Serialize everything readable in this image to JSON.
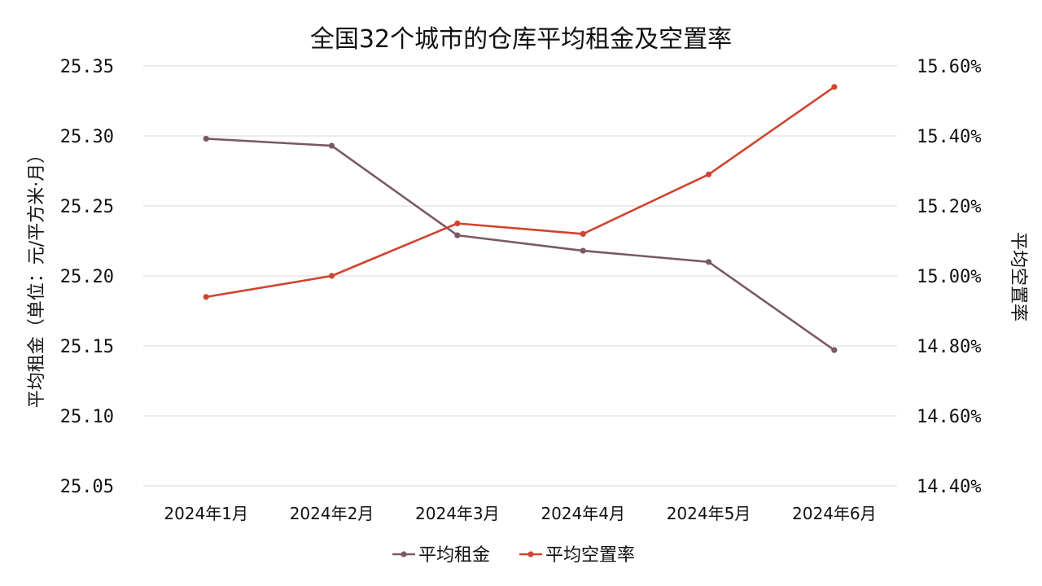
{
  "chart_data": {
    "type": "line",
    "title": "全国32个城市的仓库平均租金及空置率",
    "categories": [
      "2024年1月",
      "2024年2月",
      "2024年3月",
      "2024年4月",
      "2024年5月",
      "2024年6月"
    ],
    "y_left": {
      "label": "平均租金（单位：元/平方米·月）",
      "ticks": [
        "25.35",
        "25.30",
        "25.25",
        "25.20",
        "25.15",
        "25.10",
        "25.05"
      ],
      "ylim": [
        25.05,
        25.35
      ]
    },
    "y_right": {
      "label": "平均空置率",
      "ticks": [
        "15.60%",
        "15.40%",
        "15.20%",
        "15.00%",
        "14.80%",
        "14.60%",
        "14.40%"
      ],
      "ylim": [
        14.4,
        15.6
      ]
    },
    "series": [
      {
        "name": "平均租金",
        "axis": "left",
        "color": "#7a5a62",
        "values": [
          25.298,
          25.293,
          25.229,
          25.218,
          25.21,
          25.147
        ]
      },
      {
        "name": "平均空置率",
        "axis": "right",
        "color": "#d0442f",
        "values": [
          14.94,
          15.0,
          15.15,
          15.12,
          15.29,
          15.54
        ]
      }
    ],
    "grid": true,
    "legend_position": "bottom"
  }
}
